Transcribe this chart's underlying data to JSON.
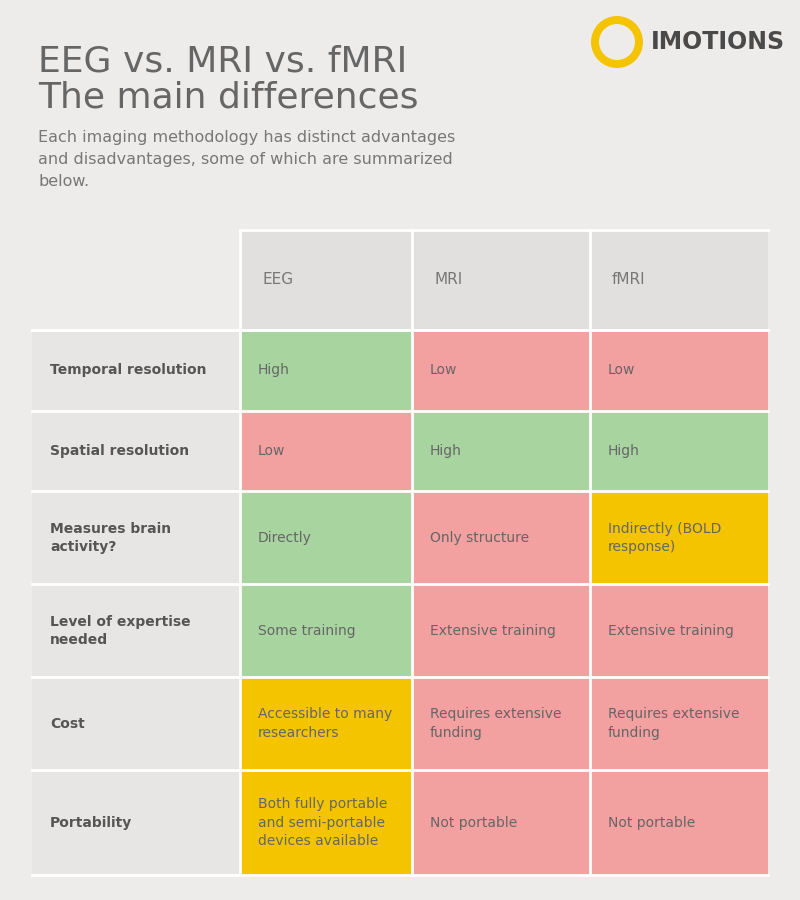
{
  "title_line1": "EEG vs. MRI vs. fMRI",
  "title_line2": "The main differences",
  "subtitle": "Each imaging methodology has distinct advantages\nand disadvantages, some of which are summarized\nbelow.",
  "bg_color": "#eeeceb",
  "header_bg": "#e2e0de",
  "row_label_bg": "#e8e6e4",
  "green": "#a8d4a0",
  "pink": "#f2a0a0",
  "yellow": "#f5c400",
  "col_headers": [
    "EEG",
    "MRI",
    "fMRI"
  ],
  "rows": [
    {
      "label_bold": "Temporal resolution",
      "values": [
        "High",
        "Low",
        "Low"
      ],
      "colors": [
        "green",
        "pink",
        "pink"
      ]
    },
    {
      "label_bold": "Spatial resolution",
      "values": [
        "Low",
        "High",
        "High"
      ],
      "colors": [
        "pink",
        "green",
        "green"
      ]
    },
    {
      "label_bold": "Measures brain\nactivity?",
      "values": [
        "Directly",
        "Only structure",
        "Indirectly (BOLD\nresponse)"
      ],
      "colors": [
        "green",
        "pink",
        "yellow"
      ]
    },
    {
      "label_bold": "Level of expertise\nneeded",
      "values": [
        "Some training",
        "Extensive training",
        "Extensive training"
      ],
      "colors": [
        "green",
        "pink",
        "pink"
      ]
    },
    {
      "label_bold": "Cost",
      "values": [
        "Accessible to many\nresearchers",
        "Requires extensive\nfunding",
        "Requires extensive\nfunding"
      ],
      "colors": [
        "yellow",
        "pink",
        "pink"
      ]
    },
    {
      "label_bold": "Portability",
      "values": [
        "Both fully portable\nand semi-portable\ndevices available",
        "Not portable",
        "Not portable"
      ],
      "colors": [
        "yellow",
        "pink",
        "pink"
      ]
    }
  ],
  "imotions_text": "IMOTIONS",
  "imotions_color": "#4a4a4a",
  "title_color": "#666666",
  "subtitle_color": "#777777",
  "label_color": "#555555",
  "cell_text_color": "#666666",
  "header_text_color": "#777777",
  "logo_ring_color": "#f5c400",
  "logo_ring_inner": "#f0ede9"
}
